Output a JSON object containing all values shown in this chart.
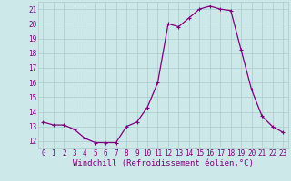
{
  "x": [
    0,
    1,
    2,
    3,
    4,
    5,
    6,
    7,
    8,
    9,
    10,
    11,
    12,
    13,
    14,
    15,
    16,
    17,
    18,
    19,
    20,
    21,
    22,
    23
  ],
  "y": [
    13.3,
    13.1,
    13.1,
    12.8,
    12.2,
    11.9,
    11.9,
    11.9,
    13.0,
    13.3,
    14.3,
    16.0,
    20.0,
    19.8,
    20.4,
    21.0,
    21.2,
    21.0,
    20.9,
    18.2,
    15.5,
    13.7,
    13.0,
    12.6
  ],
  "line_color": "#800080",
  "marker": "+",
  "marker_size": 3,
  "bg_color": "#cce8e8",
  "grid_color": "#aacccc",
  "xlabel": "Windchill (Refroidissement éolien,°C)",
  "xlabel_color": "#800080",
  "xlim": [
    -0.5,
    23.5
  ],
  "ylim": [
    11.5,
    21.5
  ],
  "yticks": [
    12,
    13,
    14,
    15,
    16,
    17,
    18,
    19,
    20,
    21
  ],
  "xticks": [
    0,
    1,
    2,
    3,
    4,
    5,
    6,
    7,
    8,
    9,
    10,
    11,
    12,
    13,
    14,
    15,
    16,
    17,
    18,
    19,
    20,
    21,
    22,
    23
  ],
  "tick_fontsize": 5.5,
  "xlabel_fontsize": 6.5,
  "marker_edge_width": 0.8,
  "line_width": 0.9
}
